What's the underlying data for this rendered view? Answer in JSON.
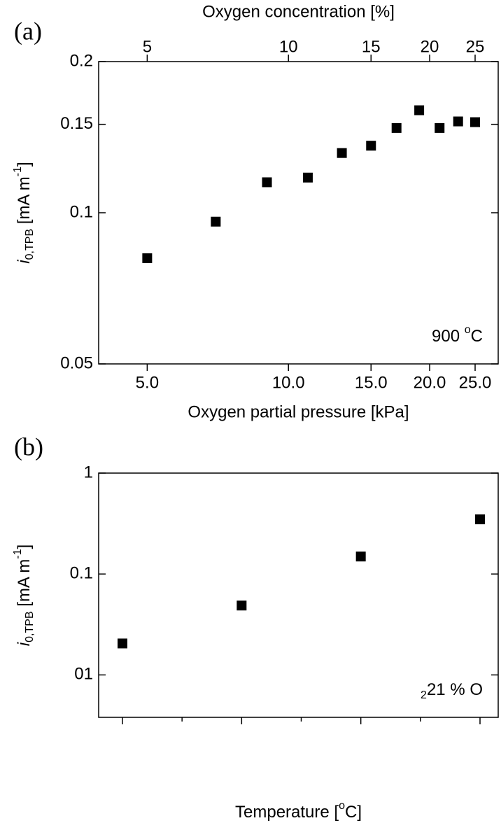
{
  "chart_data": [
    {
      "type": "scatter",
      "panel_label": "(a)",
      "xlabel": "Oxygen partial pressure [kPa]",
      "x2label": "Oxygen concentration [%]",
      "ylabel": {
        "italic": "i",
        "sub": "0,TPB",
        "text": " [mA m",
        "sup": "-1",
        "end": "]"
      },
      "annotation": {
        "text": "900 ",
        "sup": "o",
        "end": "C"
      },
      "x": [
        5,
        7,
        9,
        11,
        13,
        15,
        17,
        19,
        21,
        23,
        25
      ],
      "values": [
        0.0812,
        0.096,
        0.115,
        0.1175,
        0.1315,
        0.136,
        0.1475,
        0.16,
        0.1475,
        0.152,
        0.1515
      ],
      "color": "#000000",
      "xscale": "log",
      "yscale": "log",
      "xlim": [
        3.94,
        28
      ],
      "ylim": [
        0.05,
        0.2
      ],
      "xticks": [
        {
          "value": 5,
          "label": "5.0"
        },
        {
          "value": 10,
          "label": "10.0"
        },
        {
          "value": 15,
          "label": "15.0"
        },
        {
          "value": 20,
          "label": "20.0"
        },
        {
          "value": 25,
          "label": "25.0"
        }
      ],
      "x2ticks": [
        5,
        10,
        15,
        20,
        25
      ],
      "yticks": [
        0.05,
        0.1,
        0.15,
        0.2
      ]
    },
    {
      "type": "scatter",
      "panel_label": "(b)",
      "xlabel": {
        "text": "Temperature [",
        "sup": "o",
        "end": "C]"
      },
      "ylabel": {
        "italic": "i",
        "sub": "0,TPB",
        "text": " [mA m",
        "sup": "-1",
        "end": "]"
      },
      "annotation": {
        "text": "21 % O",
        "sub": "2"
      },
      "categories": [
        null,
        null,
        null,
        null
      ],
      "values": [
        0.0205,
        0.0487,
        0.149,
        0.348
      ],
      "color": "#000000",
      "yscale": "log",
      "ylim": [
        0.0038,
        1
      ],
      "yticks": [
        1,
        0.1,
        {
          "value": 0.01,
          "label": "01"
        }
      ]
    }
  ]
}
